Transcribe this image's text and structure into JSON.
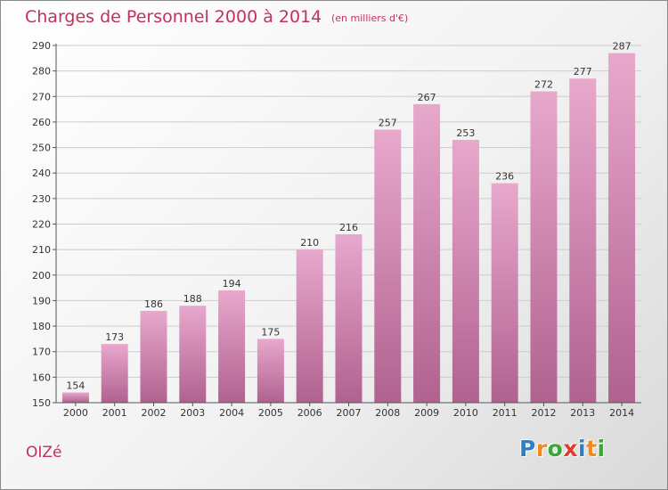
{
  "header": {
    "title": "Charges de Personnel 2000 à 2014",
    "subtitle": "(en milliers d'€)"
  },
  "footer": {
    "commune": "OIZé",
    "brand": "Proxiti",
    "brand_letters": [
      {
        "char": "P",
        "color": "#2f7fc4"
      },
      {
        "char": "r",
        "color": "#f08a1c"
      },
      {
        "char": "o",
        "color": "#3aa63a"
      },
      {
        "char": "x",
        "color": "#e23b2e"
      },
      {
        "char": "i",
        "color": "#2f7fc4"
      },
      {
        "char": "t",
        "color": "#f08a1c"
      },
      {
        "char": "i",
        "color": "#3aa63a"
      }
    ]
  },
  "colors": {
    "bar_light": "#e8a8cc",
    "bar_dark": "#b0628f",
    "grid": "#cccccc",
    "axis": "#555555",
    "text": "#333333"
  },
  "chart_data": {
    "type": "bar",
    "categories": [
      "2000",
      "2001",
      "2002",
      "2003",
      "2004",
      "2005",
      "2006",
      "2007",
      "2008",
      "2009",
      "2010",
      "2011",
      "2012",
      "2013",
      "2014"
    ],
    "values": [
      154,
      173,
      186,
      188,
      194,
      175,
      210,
      216,
      257,
      267,
      253,
      236,
      272,
      277,
      287
    ],
    "ylim": [
      150,
      290
    ],
    "yticks": [
      150,
      160,
      170,
      180,
      190,
      200,
      210,
      220,
      230,
      240,
      250,
      260,
      270,
      280,
      290
    ],
    "grid": true,
    "data_labels": true
  }
}
